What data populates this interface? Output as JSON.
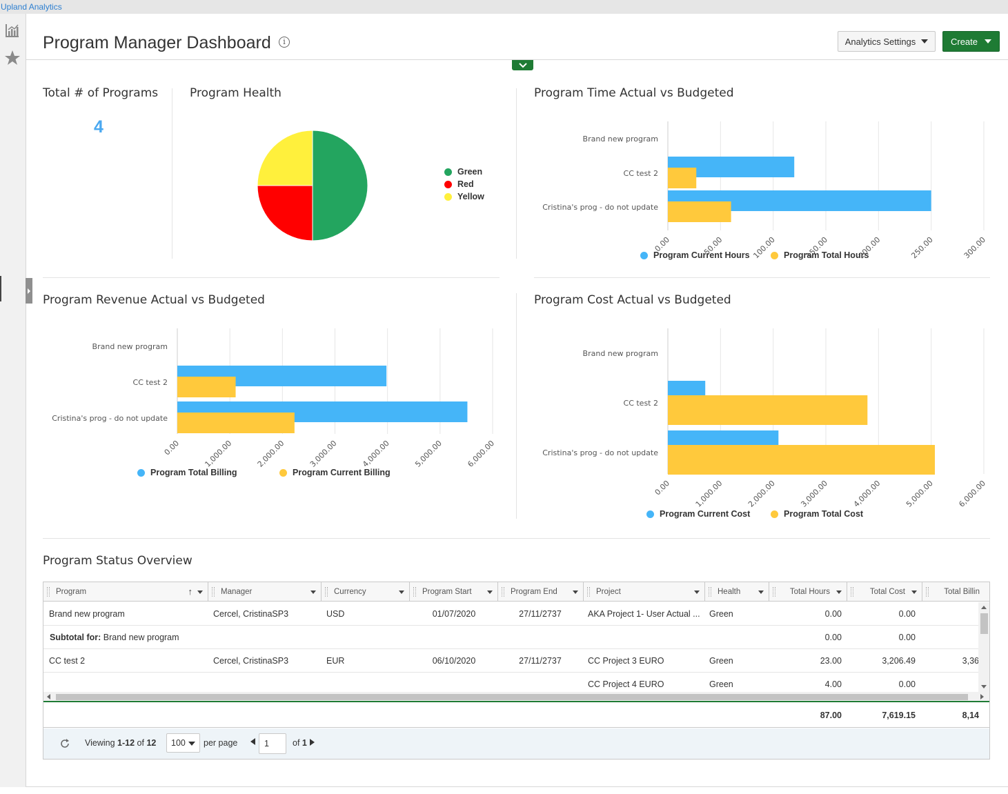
{
  "app": {
    "brand": "Upland Analytics"
  },
  "rail": {
    "items": [
      "analytics-icon",
      "star-icon"
    ]
  },
  "header": {
    "title": "Program Manager Dashboard",
    "info_glyph": "i",
    "settings_label": "Analytics Settings",
    "create_label": "Create"
  },
  "colors": {
    "blue": "#45b5f8",
    "yellow": "#ffc93c",
    "green": "#23a55f",
    "red": "#ff0000",
    "pie_yellow": "#fff03c",
    "accent": "#1e7b34"
  },
  "kpi": {
    "title": "Total # of Programs",
    "value": "4"
  },
  "health": {
    "title": "Program Health",
    "chart_data": {
      "type": "pie",
      "labels": [
        "Green",
        "Red",
        "Yellow"
      ],
      "values": [
        2,
        1,
        1
      ],
      "colors": [
        "#23a55f",
        "#ff0000",
        "#fff03c"
      ]
    }
  },
  "time_chart": {
    "title": "Program Time Actual vs Budgeted",
    "chart_data": {
      "type": "bar",
      "orientation": "horizontal",
      "categories": [
        "Brand new program",
        "CC test 2",
        "Cristina's prog - do not update"
      ],
      "series": [
        {
          "name": "Program Current Hours",
          "color": "#45b5f8",
          "values": [
            0,
            120,
            250
          ]
        },
        {
          "name": "Program Total Hours",
          "color": "#ffc93c",
          "values": [
            0,
            27,
            60
          ]
        }
      ],
      "ticks": [
        "0.00",
        "50.00",
        "100.00",
        "150.00",
        "200.00",
        "250.00",
        "300.00"
      ],
      "xlim": [
        0,
        300
      ]
    }
  },
  "revenue_chart": {
    "title": "Program Revenue Actual vs Budgeted",
    "chart_data": {
      "type": "bar",
      "orientation": "horizontal",
      "categories": [
        "Brand new program",
        "CC test 2",
        "Cristina's prog - do not update"
      ],
      "series": [
        {
          "name": "Program Total Billing",
          "color": "#45b5f8",
          "values": [
            0,
            3980,
            5520
          ]
        },
        {
          "name": "Program Current Billing",
          "color": "#ffc93c",
          "values": [
            0,
            1110,
            2230
          ]
        }
      ],
      "ticks": [
        "0.00",
        "1,000.00",
        "2,000.00",
        "3,000.00",
        "4,000.00",
        "5,000.00",
        "6,000.00"
      ],
      "xlim": [
        0,
        6000
      ]
    }
  },
  "cost_chart": {
    "title": "Program Cost Actual vs Budgeted",
    "chart_data": {
      "type": "bar",
      "orientation": "horizontal",
      "categories": [
        "Brand new program",
        "CC test 2",
        "Cristina's prog - do not update"
      ],
      "series": [
        {
          "name": "Program Current Cost",
          "color": "#45b5f8",
          "values": [
            0,
            710,
            2100
          ]
        },
        {
          "name": "Program Total Cost",
          "color": "#ffc93c",
          "values": [
            0,
            3790,
            5070
          ]
        }
      ],
      "ticks": [
        "0.00",
        "1,000.00",
        "2,000.00",
        "3,000.00",
        "4,000.00",
        "5,000.00",
        "6,000.00"
      ],
      "xlim": [
        0,
        6000
      ]
    }
  },
  "overview": {
    "title": "Program Status Overview",
    "columns": [
      "Program",
      "Manager",
      "Currency",
      "Program Start",
      "Program End",
      "Project",
      "Health",
      "Total Hours",
      "Total Cost",
      "Total Billin"
    ],
    "sort_glyph": "↑",
    "rows": [
      {
        "program": "Brand new program",
        "manager": "Cercel, CristinaSP3",
        "currency": "USD",
        "start": "01/07/2020",
        "end": "27/11/2737",
        "project": "AKA Project 1- User Actual ...",
        "health": "Green",
        "hours": "0.00",
        "cost": "0.00",
        "billing": ""
      },
      {
        "subtotal_label": "Subtotal for:",
        "subtotal_value": " Brand new program",
        "hours": "0.00",
        "cost": "0.00",
        "billing": ""
      },
      {
        "program": "CC test 2",
        "manager": "Cercel, CristinaSP3",
        "currency": "EUR",
        "start": "06/10/2020",
        "end": "27/11/2737",
        "project": "CC Project 3 EURO",
        "health": "Green",
        "hours": "23.00",
        "cost": "3,206.49",
        "billing": "3,36"
      },
      {
        "program": "",
        "manager": "",
        "currency": "",
        "start": "",
        "end": "",
        "project": "CC Project 4 EURO",
        "health": "Green",
        "hours": "4.00",
        "cost": "0.00",
        "billing": ""
      }
    ],
    "totals": {
      "hours": "87.00",
      "cost": "7,619.15",
      "billing": "8,14"
    },
    "pager": {
      "viewing_prefix": "Viewing ",
      "viewing_range": "1-12",
      "viewing_of": " of ",
      "viewing_total": "12",
      "per_page_value": "100",
      "per_page_label": "per page",
      "page_value": "1",
      "of_label": "of ",
      "of_total": "1"
    }
  }
}
